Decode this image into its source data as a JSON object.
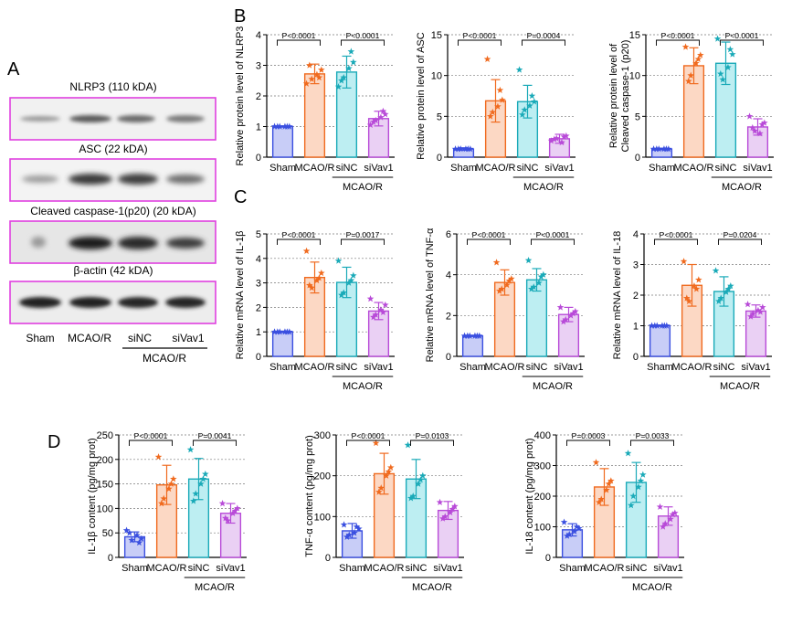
{
  "panels": {
    "a": "A",
    "b": "B",
    "c": "C",
    "d": "D"
  },
  "western_blot": {
    "bands": [
      {
        "title": "NLRP3 (110 kDA)"
      },
      {
        "title": "ASC (22 kDA)"
      },
      {
        "title": "Cleaved caspase-1(p20) (20 kDA)"
      },
      {
        "title": "β-actin (42 kDA)"
      }
    ],
    "lanes": [
      "Sham",
      "MCAO/R",
      "siNC",
      "siVav1"
    ],
    "group_label": "MCAO/R",
    "frame_color": "#e040e0"
  },
  "colors": {
    "Sham": "#3a4fe0",
    "MCAO/R": "#f06a1e",
    "siNC": "#1aaab8",
    "siVav1": "#b84ad8",
    "Sham_fill": "#c8cdf7",
    "MCAO/R_fill": "#fcd8c4",
    "siNC_fill": "#bdeef2",
    "siVav1_fill": "#ead0f4"
  },
  "chart_data": [
    {
      "id": "nlrp3",
      "type": "bar",
      "categories": [
        "Sham",
        "MCAO/R",
        "siNC",
        "siVav1"
      ],
      "values": [
        1.0,
        2.72,
        2.78,
        1.26
      ],
      "errors": [
        0.02,
        0.32,
        0.52,
        0.24
      ],
      "points": [
        [
          1,
          1,
          1,
          1,
          1,
          1
        ],
        [
          2.4,
          2.55,
          2.7,
          2.85,
          3.0,
          2.6
        ],
        [
          2.3,
          2.6,
          2.9,
          3.1,
          2.5,
          3.45
        ],
        [
          1.05,
          1.2,
          1.3,
          1.4,
          1.15,
          1.5
        ]
      ],
      "ylabel": "Relative protein level  of NLRP3",
      "ylim": [
        0,
        4
      ],
      "yticks": [
        0,
        1,
        2,
        3,
        4
      ],
      "group_label": "MCAO/R",
      "pvalues": [
        {
          "from": 0,
          "to": 1,
          "text": "P<0.0001"
        },
        {
          "from": 2,
          "to": 3,
          "text": "P<0.0001"
        }
      ]
    },
    {
      "id": "asc",
      "type": "bar",
      "categories": [
        "Sham",
        "MCAO/R",
        "siNC",
        "siVav1"
      ],
      "values": [
        1.0,
        6.9,
        6.8,
        2.25
      ],
      "errors": [
        0.15,
        2.6,
        2.0,
        0.55
      ],
      "points": [
        [
          1,
          1,
          1,
          1,
          1,
          1
        ],
        [
          12.0,
          5.5,
          6.2,
          7.0,
          5.0,
          8.2
        ],
        [
          10.7,
          5.8,
          6.3,
          6.8,
          5.2,
          7.5
        ],
        [
          2.0,
          2.3,
          1.8,
          2.6,
          2.2,
          2.5
        ]
      ],
      "ylabel": "Relative protein level  of ASC",
      "ylim": [
        0,
        15
      ],
      "yticks": [
        0,
        5,
        10,
        15
      ],
      "group_label": "MCAO/R",
      "pvalues": [
        {
          "from": 0,
          "to": 1,
          "text": "P<0.0001"
        },
        {
          "from": 2,
          "to": 3,
          "text": "P=0.0004"
        }
      ]
    },
    {
      "id": "casp1",
      "type": "bar",
      "categories": [
        "Sham",
        "MCAO/R",
        "siNC",
        "siVav1"
      ],
      "values": [
        1.0,
        11.2,
        11.5,
        3.7
      ],
      "errors": [
        0.1,
        2.2,
        2.6,
        1.0
      ],
      "points": [
        [
          1,
          1,
          1,
          1,
          1,
          1
        ],
        [
          13.5,
          10.0,
          11.5,
          12.5,
          9.3,
          12.0
        ],
        [
          14.5,
          9.5,
          11.0,
          12.6,
          10.2,
          13.2
        ],
        [
          5.0,
          3.2,
          2.9,
          4.2,
          3.6,
          4.0
        ]
      ],
      "ylabel": "Relative protein level  of\nCleaved caspase-1 (p20)",
      "ylim": [
        0,
        15
      ],
      "yticks": [
        0,
        5,
        10,
        15
      ],
      "group_label": "MCAO/R",
      "pvalues": [
        {
          "from": 0,
          "to": 1,
          "text": "P<0.0001"
        },
        {
          "from": 2,
          "to": 3,
          "text": "P<0.0001"
        }
      ]
    },
    {
      "id": "il1b_mrna",
      "type": "bar",
      "categories": [
        "Sham",
        "MCAO/R",
        "siNC",
        "siVav1"
      ],
      "values": [
        1.0,
        3.22,
        3.02,
        1.85
      ],
      "errors": [
        0.03,
        0.63,
        0.62,
        0.35
      ],
      "points": [
        [
          1,
          1,
          1,
          1,
          1,
          1
        ],
        [
          4.3,
          2.8,
          3.1,
          3.4,
          2.9,
          3.2
        ],
        [
          3.9,
          2.6,
          3.0,
          3.3,
          2.5,
          3.1
        ],
        [
          2.35,
          1.7,
          1.9,
          2.1,
          1.6,
          1.8
        ]
      ],
      "ylabel": "Relative mRNA level of IL-1β",
      "ylim": [
        0,
        5
      ],
      "yticks": [
        0,
        1,
        2,
        3,
        4,
        5
      ],
      "group_label": "MCAO/R",
      "pvalues": [
        {
          "from": 0,
          "to": 1,
          "text": "P<0.0001"
        },
        {
          "from": 2,
          "to": 3,
          "text": "P=0.0017"
        }
      ]
    },
    {
      "id": "tnfa_mrna",
      "type": "bar",
      "categories": [
        "Sham",
        "MCAO/R",
        "siNC",
        "siVav1"
      ],
      "values": [
        1.0,
        3.62,
        3.75,
        2.05
      ],
      "errors": [
        0.03,
        0.62,
        0.55,
        0.35
      ],
      "points": [
        [
          1,
          1,
          1,
          1,
          1,
          1
        ],
        [
          4.6,
          3.3,
          3.5,
          3.8,
          3.2,
          3.7
        ],
        [
          4.7,
          3.4,
          3.6,
          4.0,
          3.3,
          3.9
        ],
        [
          2.4,
          1.8,
          2.0,
          2.2,
          1.7,
          2.1
        ]
      ],
      "ylabel": "Relative mRNA level of TNF-α",
      "ylim": [
        0,
        6
      ],
      "yticks": [
        0,
        2,
        4,
        6
      ],
      "group_label": "MCAO/R",
      "pvalues": [
        {
          "from": 0,
          "to": 1,
          "text": "P<0.0001"
        },
        {
          "from": 2,
          "to": 3,
          "text": "P<0.0001"
        }
      ]
    },
    {
      "id": "il18_mrna",
      "type": "bar",
      "categories": [
        "Sham",
        "MCAO/R",
        "siNC",
        "siVav1"
      ],
      "values": [
        1.0,
        2.32,
        2.12,
        1.48
      ],
      "errors": [
        0.02,
        0.68,
        0.48,
        0.2
      ],
      "points": [
        [
          1,
          1,
          1,
          1,
          1,
          1
        ],
        [
          3.1,
          1.8,
          2.3,
          2.5,
          1.9,
          2.2
        ],
        [
          2.8,
          1.9,
          2.1,
          2.3,
          1.8,
          2.2
        ],
        [
          1.7,
          1.4,
          1.5,
          1.6,
          1.3,
          1.45
        ]
      ],
      "ylabel": "Relative mRNA level of IL-18",
      "ylim": [
        0,
        4
      ],
      "yticks": [
        0,
        1,
        2,
        3,
        4
      ],
      "group_label": "MCAO/R",
      "pvalues": [
        {
          "from": 0,
          "to": 1,
          "text": "P<0.0001"
        },
        {
          "from": 2,
          "to": 3,
          "text": "P=0.0204"
        }
      ]
    },
    {
      "id": "il1b_content",
      "type": "bar",
      "categories": [
        "Sham",
        "MCAO/R",
        "siNC",
        "siVav1"
      ],
      "values": [
        42,
        148,
        160,
        90
      ],
      "errors": [
        10,
        40,
        42,
        20
      ],
      "points": [
        [
          55,
          35,
          45,
          38,
          50,
          30
        ],
        [
          205,
          120,
          140,
          160,
          110,
          150
        ],
        [
          220,
          130,
          150,
          170,
          115,
          160
        ],
        [
          110,
          75,
          90,
          100,
          80,
          95
        ]
      ],
      "ylabel": "IL-1β content (pg/mg prot)",
      "ylim": [
        0,
        250
      ],
      "yticks": [
        0,
        50,
        100,
        150,
        200,
        250
      ],
      "group_label": "MCAO/R",
      "pvalues": [
        {
          "from": 0,
          "to": 1,
          "text": "P<0.0001"
        },
        {
          "from": 2,
          "to": 3,
          "text": "P=0.0041"
        }
      ]
    },
    {
      "id": "tnfa_content",
      "type": "bar",
      "categories": [
        "Sham",
        "MCAO/R",
        "siNC",
        "siVav1"
      ],
      "values": [
        65,
        205,
        192,
        115
      ],
      "errors": [
        18,
        50,
        48,
        22
      ],
      "points": [
        [
          80,
          55,
          60,
          70,
          50,
          75
        ],
        [
          280,
          170,
          200,
          220,
          160,
          210
        ],
        [
          275,
          150,
          180,
          200,
          145,
          190
        ],
        [
          135,
          100,
          110,
          125,
          95,
          118
        ]
      ],
      "ylabel": "TNF-α content (pg/mg prot)",
      "ylim": [
        0,
        300
      ],
      "yticks": [
        0,
        100,
        200,
        300
      ],
      "group_label": "MCAO/R",
      "pvalues": [
        {
          "from": 0,
          "to": 1,
          "text": "P<0.0001"
        },
        {
          "from": 2,
          "to": 3,
          "text": "P=0.0103"
        }
      ]
    },
    {
      "id": "il18_content",
      "type": "bar",
      "categories": [
        "Sham",
        "MCAO/R",
        "siNC",
        "siVav1"
      ],
      "values": [
        90,
        230,
        245,
        135
      ],
      "errors": [
        20,
        60,
        65,
        30
      ],
      "points": [
        [
          115,
          75,
          85,
          95,
          70,
          100
        ],
        [
          310,
          190,
          220,
          250,
          180,
          240
        ],
        [
          340,
          200,
          230,
          270,
          170,
          250
        ],
        [
          165,
          110,
          125,
          145,
          100,
          140
        ]
      ],
      "ylabel": "IL-18 content (pg/mg prot)",
      "ylim": [
        0,
        400
      ],
      "yticks": [
        0,
        100,
        200,
        300,
        400
      ],
      "group_label": "MCAO/R",
      "pvalues": [
        {
          "from": 0,
          "to": 1,
          "text": "P=0.0003"
        },
        {
          "from": 2,
          "to": 3,
          "text": "P=0.0033"
        }
      ]
    }
  ]
}
